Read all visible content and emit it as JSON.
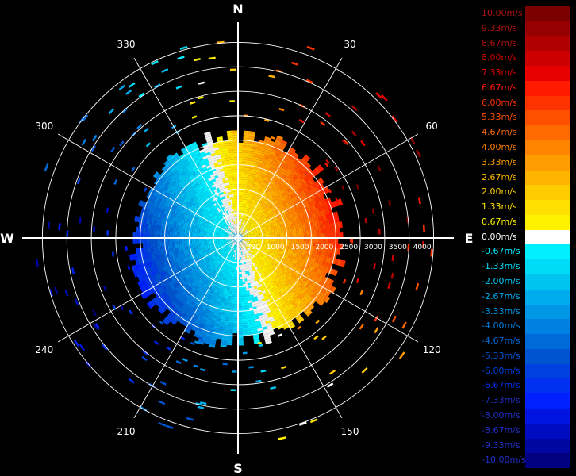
{
  "chart_data": {
    "type": "polar-radial-velocity",
    "title": "",
    "compass": {
      "north": "N",
      "east": "E",
      "south": "S",
      "west": "W"
    },
    "bearing_labels": [
      "30",
      "60",
      "120",
      "150",
      "210",
      "240",
      "300",
      "330"
    ],
    "range_labels": [
      "500",
      "1000",
      "1500",
      "2000",
      "2500",
      "3000",
      "3500",
      "4000"
    ],
    "range_max": 4250,
    "legend": [
      {
        "label": "10.00m/s",
        "value": 10.0,
        "color": "#7a0000"
      },
      {
        "label": "9.33m/s",
        "value": 9.33,
        "color": "#960000"
      },
      {
        "label": "8.67m/s",
        "value": 8.67,
        "color": "#b00000"
      },
      {
        "label": "8.00m/s",
        "value": 8.0,
        "color": "#cc0000"
      },
      {
        "label": "7.33m/s",
        "value": 7.33,
        "color": "#e60000"
      },
      {
        "label": "6.67m/s",
        "value": 6.67,
        "color": "#ff1a00"
      },
      {
        "label": "6.00m/s",
        "value": 6.0,
        "color": "#ff3300"
      },
      {
        "label": "5.33m/s",
        "value": 5.33,
        "color": "#ff5000"
      },
      {
        "label": "4.67m/s",
        "value": 4.67,
        "color": "#ff6a00"
      },
      {
        "label": "4.00m/s",
        "value": 4.0,
        "color": "#ff8400"
      },
      {
        "label": "3.33m/s",
        "value": 3.33,
        "color": "#ff9c00"
      },
      {
        "label": "2.67m/s",
        "value": 2.67,
        "color": "#ffb400"
      },
      {
        "label": "2.00m/s",
        "value": 2.0,
        "color": "#ffcc00"
      },
      {
        "label": "1.33m/s",
        "value": 1.33,
        "color": "#ffe000"
      },
      {
        "label": "0.67m/s",
        "value": 0.67,
        "color": "#fff200"
      },
      {
        "label": "0.00m/s",
        "value": 0.0,
        "color": "#ffffff"
      },
      {
        "label": "-0.67m/s",
        "value": -0.67,
        "color": "#00f0ff"
      },
      {
        "label": "-1.33m/s",
        "value": -1.33,
        "color": "#00dcf8"
      },
      {
        "label": "-2.00m/s",
        "value": -2.0,
        "color": "#00c4f0"
      },
      {
        "label": "-2.67m/s",
        "value": -2.67,
        "color": "#00acec"
      },
      {
        "label": "-3.33m/s",
        "value": -3.33,
        "color": "#0096e6"
      },
      {
        "label": "-4.00m/s",
        "value": -4.0,
        "color": "#0080e0"
      },
      {
        "label": "-4.67m/s",
        "value": -4.67,
        "color": "#006ad8"
      },
      {
        "label": "-5.33m/s",
        "value": -5.33,
        "color": "#0054d0"
      },
      {
        "label": "-6.00m/s",
        "value": -6.0,
        "color": "#0040e0"
      },
      {
        "label": "-6.67m/s",
        "value": -6.67,
        "color": "#0030f0"
      },
      {
        "label": "-7.33m/s",
        "value": -7.33,
        "color": "#0020ff"
      },
      {
        "label": "-8.00m/s",
        "value": -8.0,
        "color": "#0014e0"
      },
      {
        "label": "-8.67m/s",
        "value": -8.67,
        "color": "#000cc0"
      },
      {
        "label": "-9.33m/s",
        "value": -9.33,
        "color": "#0006a0"
      },
      {
        "label": "-10.00m/s",
        "value": -10.0,
        "color": "#000080"
      }
    ],
    "field": {
      "max_velocity": 10.0,
      "velocity_max_range": 2300,
      "outbound_azimuth": 72,
      "inbound_azimuth": 252,
      "data_edge_range": 2050,
      "clutter_color": "#ffffff",
      "grid_color": "#ffffff",
      "background": "#000000"
    }
  }
}
